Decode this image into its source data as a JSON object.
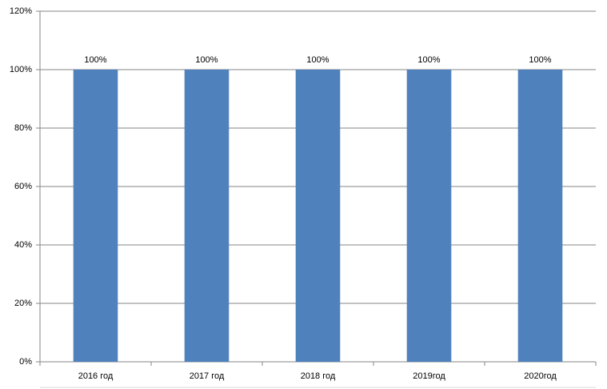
{
  "chart_data": {
    "type": "bar",
    "categories": [
      "2016 год",
      "2017 год",
      "2018 год",
      "2019год",
      "2020год"
    ],
    "values": [
      100,
      100,
      100,
      100,
      100
    ],
    "value_labels": [
      "100%",
      "100%",
      "100%",
      "100%",
      "100%"
    ],
    "color": "#4f81bd",
    "ylim": [
      0,
      120
    ],
    "yticks": [
      {
        "value": 0,
        "label": "0%"
      },
      {
        "value": 20,
        "label": "20%"
      },
      {
        "value": 40,
        "label": "40%"
      },
      {
        "value": 60,
        "label": "60%"
      },
      {
        "value": 80,
        "label": "80%"
      },
      {
        "value": 100,
        "label": "100%"
      },
      {
        "value": 120,
        "label": "120%"
      }
    ],
    "grid": true
  }
}
